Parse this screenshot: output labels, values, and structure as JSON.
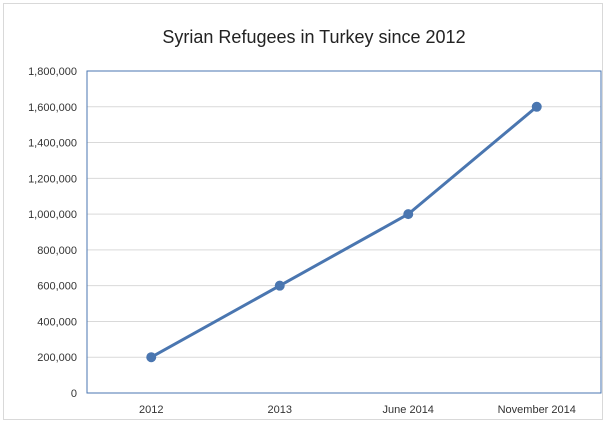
{
  "chart_data": {
    "type": "line",
    "title": "Syrian Refugees in Turkey since 2012",
    "categories": [
      "2012",
      "2013",
      "June 2014",
      "November 2014"
    ],
    "series": [
      {
        "values": [
          200000,
          600000,
          1000000,
          1600000
        ],
        "color": "#4a76b0"
      }
    ],
    "ylim": [
      0,
      1800000
    ],
    "yticks": [
      0,
      200000,
      400000,
      600000,
      800000,
      1000000,
      1200000,
      1400000,
      1600000,
      1800000
    ],
    "ytick_labels": [
      "0",
      "200,000",
      "400,000",
      "600,000",
      "800,000",
      "1,000,000",
      "1,200,000",
      "1,400,000",
      "1,600,000",
      "1,800,000"
    ],
    "grid": true,
    "legend": "none",
    "plot_border_color": "#4a76b0",
    "grid_color": "#d9d9d9"
  }
}
